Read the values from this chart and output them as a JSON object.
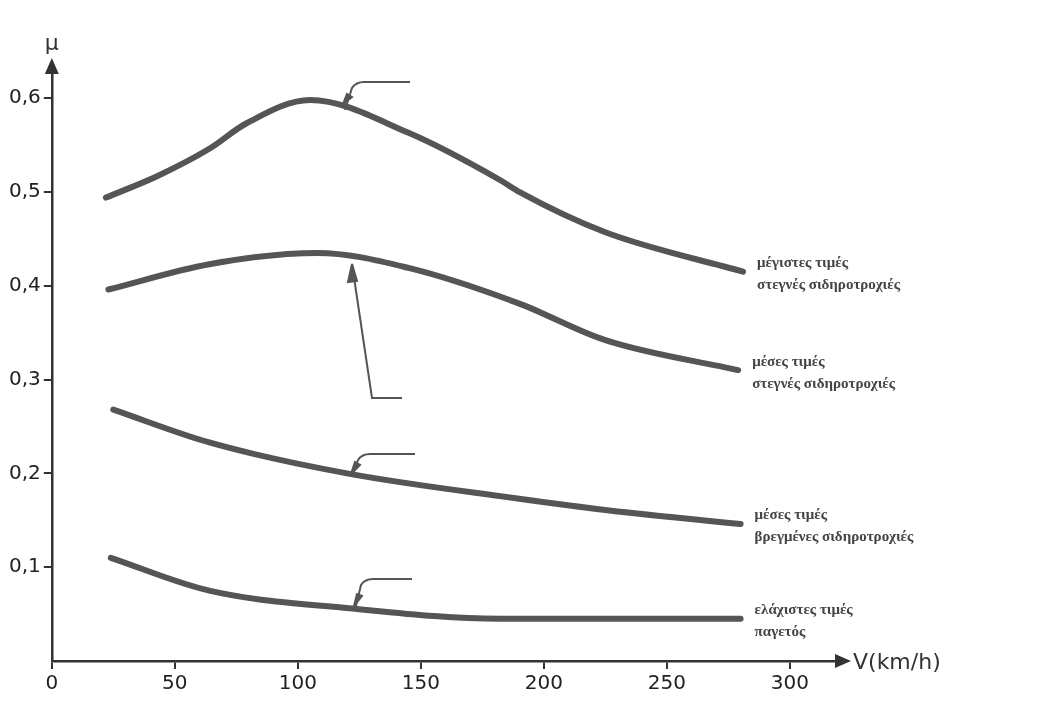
{
  "chart_data": {
    "type": "line",
    "xlabel": "V(km/h)",
    "ylabel": "μ",
    "xlim": [
      0,
      320
    ],
    "ylim": [
      0,
      0.63
    ],
    "xticks": [
      {
        "value": 0,
        "label": "0"
      },
      50,
      100,
      150,
      200,
      250,
      300
    ],
    "yticks": [
      {
        "value": 0.1,
        "label": "0,1"
      },
      {
        "value": 0.2,
        "label": "0,2"
      },
      {
        "value": 0.3,
        "label": "0,3"
      },
      {
        "value": 0.4,
        "label": "0,4"
      },
      {
        "value": 0.5,
        "label": "0,5"
      },
      {
        "value": 0.6,
        "label": "0,6"
      }
    ],
    "grid": false,
    "legend": false,
    "marker": "none",
    "line_style": "solid",
    "series": [
      {
        "name": "μέγιστες τιμές\nστεγνές σιδηροτροχιές",
        "color": "#555555",
        "x": [
          22,
          43,
          64,
          79,
          105,
          145,
          182,
          190,
          225,
          281
        ],
        "values": [
          0.494,
          0.517,
          0.546,
          0.573,
          0.598,
          0.563,
          0.513,
          0.5,
          0.457,
          0.415
        ]
      },
      {
        "name": "μέσες τιμές\nστεγνές σιδηροτροχιές",
        "color": "#555555",
        "x": [
          23,
          64,
          108,
          145,
          190,
          225,
          279
        ],
        "values": [
          0.396,
          0.423,
          0.435,
          0.419,
          0.381,
          0.342,
          0.31
        ]
      },
      {
        "name": "μέσες τιμές\nβρεγμένες σιδηροτροχιές",
        "color": "#555555",
        "x": [
          25,
          64,
          120,
          190,
          225,
          280
        ],
        "values": [
          0.268,
          0.233,
          0.2,
          0.173,
          0.161,
          0.146
        ]
      },
      {
        "name": "ελάχιστες τιμές\nπαγετός",
        "color": "#555555",
        "x": [
          24,
          64,
          122,
          182,
          280
        ],
        "values": [
          0.11,
          0.075,
          0.056,
          0.045,
          0.045
        ]
      }
    ]
  }
}
